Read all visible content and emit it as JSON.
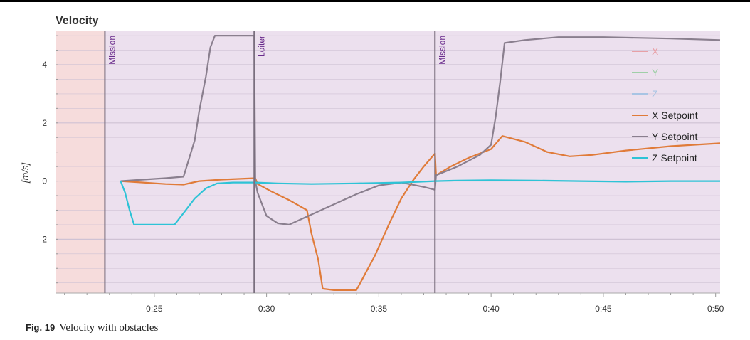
{
  "caption": {
    "figure_label": "Fig. 19",
    "text": "Velocity with obstacles"
  },
  "chart_data": {
    "type": "line",
    "title": "Velocity",
    "xlabel": "",
    "ylabel": "[m/s]",
    "xlim": [
      20.6,
      50.2
    ],
    "ylim": [
      -3.85,
      5.15
    ],
    "x_ticks": [
      25,
      30,
      35,
      40,
      45,
      50
    ],
    "x_tick_labels": [
      "0:25",
      "0:30",
      "0:35",
      "0:40",
      "0:45",
      "0:50"
    ],
    "y_ticks": [
      -2,
      0,
      2,
      4
    ],
    "y_tick_labels": [
      "-2",
      "0",
      "2",
      "4"
    ],
    "grid": true,
    "legend_position": "top-right",
    "colors": {
      "plot_background": "#ece0ee",
      "prearm_background": "#f6dcdc",
      "mode_line": "#7a6f7e",
      "mode_text": "#6a2c8c",
      "grid": "#cfc2d4"
    },
    "mode_changes": [
      {
        "x": 22.8,
        "label": "Mission"
      },
      {
        "x": 29.45,
        "label": "Loiter"
      },
      {
        "x": 37.5,
        "label": "Mission"
      }
    ],
    "series": [
      {
        "name": "X",
        "color": "#e8a0a6",
        "values": []
      },
      {
        "name": "Y",
        "color": "#9fcfa8",
        "values": []
      },
      {
        "name": "Z",
        "color": "#a8c4e4",
        "values": []
      },
      {
        "name": "X Setpoint",
        "color": "#e07b39",
        "values": [
          [
            23.5,
            0.0
          ],
          [
            24.5,
            -0.05
          ],
          [
            25.5,
            -0.1
          ],
          [
            26.3,
            -0.12
          ],
          [
            27.0,
            0.0
          ],
          [
            28.0,
            0.05
          ],
          [
            29.5,
            0.1
          ],
          [
            29.6,
            -0.1
          ],
          [
            30.2,
            -0.35
          ],
          [
            31.0,
            -0.65
          ],
          [
            31.8,
            -1.0
          ],
          [
            32.0,
            -1.8
          ],
          [
            32.3,
            -2.7
          ],
          [
            32.5,
            -3.7
          ],
          [
            33.0,
            -3.75
          ],
          [
            34.0,
            -3.75
          ],
          [
            34.8,
            -2.6
          ],
          [
            35.5,
            -1.4
          ],
          [
            36.0,
            -0.6
          ],
          [
            36.5,
            0.0
          ],
          [
            37.0,
            0.5
          ],
          [
            37.5,
            0.95
          ],
          [
            37.55,
            0.2
          ],
          [
            38.2,
            0.5
          ],
          [
            39.0,
            0.8
          ],
          [
            40.0,
            1.1
          ],
          [
            40.5,
            1.55
          ],
          [
            41.5,
            1.35
          ],
          [
            42.5,
            1.0
          ],
          [
            43.5,
            0.85
          ],
          [
            44.5,
            0.9
          ],
          [
            46.0,
            1.05
          ],
          [
            48.0,
            1.2
          ],
          [
            50.2,
            1.3
          ]
        ]
      },
      {
        "name": "Y Setpoint",
        "color": "#8a7f8e",
        "values": [
          [
            23.5,
            0.0
          ],
          [
            24.5,
            0.05
          ],
          [
            25.5,
            0.1
          ],
          [
            26.3,
            0.15
          ],
          [
            26.8,
            1.4
          ],
          [
            27.0,
            2.4
          ],
          [
            27.3,
            3.6
          ],
          [
            27.5,
            4.6
          ],
          [
            27.7,
            5.0
          ],
          [
            28.5,
            5.0
          ],
          [
            29.45,
            5.0
          ],
          [
            29.5,
            0.0
          ],
          [
            29.6,
            -0.4
          ],
          [
            30.0,
            -1.2
          ],
          [
            30.5,
            -1.45
          ],
          [
            31.0,
            -1.5
          ],
          [
            32.0,
            -1.15
          ],
          [
            33.0,
            -0.8
          ],
          [
            34.0,
            -0.45
          ],
          [
            35.0,
            -0.15
          ],
          [
            36.0,
            -0.05
          ],
          [
            37.0,
            -0.2
          ],
          [
            37.5,
            -0.3
          ],
          [
            37.55,
            0.2
          ],
          [
            38.5,
            0.5
          ],
          [
            39.5,
            0.9
          ],
          [
            40.0,
            1.25
          ],
          [
            40.2,
            2.2
          ],
          [
            40.4,
            3.4
          ],
          [
            40.6,
            4.75
          ],
          [
            41.5,
            4.85
          ],
          [
            43.0,
            4.95
          ],
          [
            45.0,
            4.95
          ],
          [
            48.0,
            4.9
          ],
          [
            50.2,
            4.85
          ]
        ]
      },
      {
        "name": "Z Setpoint",
        "color": "#2ec3d6",
        "values": [
          [
            23.5,
            0.0
          ],
          [
            23.7,
            -0.4
          ],
          [
            23.9,
            -1.0
          ],
          [
            24.1,
            -1.5
          ],
          [
            25.0,
            -1.5
          ],
          [
            25.9,
            -1.5
          ],
          [
            26.3,
            -1.1
          ],
          [
            26.8,
            -0.6
          ],
          [
            27.3,
            -0.25
          ],
          [
            27.8,
            -0.08
          ],
          [
            28.5,
            -0.05
          ],
          [
            29.5,
            -0.05
          ],
          [
            30.5,
            -0.08
          ],
          [
            32.0,
            -0.1
          ],
          [
            34.0,
            -0.08
          ],
          [
            36.0,
            -0.05
          ],
          [
            37.5,
            0.0
          ],
          [
            38.5,
            0.02
          ],
          [
            40.0,
            0.03
          ],
          [
            42.0,
            0.02
          ],
          [
            44.0,
            0.0
          ],
          [
            46.0,
            -0.02
          ],
          [
            48.0,
            0.0
          ],
          [
            50.2,
            0.0
          ]
        ]
      }
    ]
  }
}
